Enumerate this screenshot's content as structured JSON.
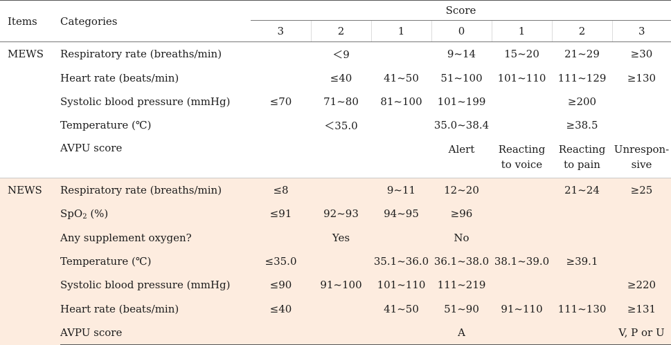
{
  "header": {
    "items": "Items",
    "categories": "Categories",
    "score": "Score",
    "score_cols": [
      "3",
      "2",
      "1",
      "0",
      "1",
      "2",
      "3"
    ]
  },
  "mews": {
    "label": "MEWS",
    "rows": [
      {
        "cat": "Respiratory rate (breaths/min)",
        "vals": [
          "",
          "＜9",
          "",
          "9~14",
          "15~20",
          "21~29",
          "≥30"
        ]
      },
      {
        "cat": "Heart rate (beats/min)",
        "vals": [
          "",
          "≤40",
          "41~50",
          "51~100",
          "101~110",
          "111~129",
          "≥130"
        ]
      },
      {
        "cat": "Systolic blood pressure (mmHg)",
        "vals": [
          "≤70",
          "71~80",
          "81~100",
          "101~199",
          "",
          "≥200",
          ""
        ]
      },
      {
        "cat": "Temperature (℃)",
        "vals": [
          "",
          "＜35.0",
          "",
          "35.0~38.4",
          "",
          "≥38.5",
          ""
        ]
      },
      {
        "cat": "AVPU score",
        "vals": [
          "",
          "",
          "",
          "Alert",
          "Reacting to voice",
          "Reacting to pain",
          "Unrespon-sive"
        ]
      }
    ]
  },
  "news": {
    "label": "NEWS",
    "rows": [
      {
        "cat": "Respiratory rate (breaths/min)",
        "vals": [
          "≤8",
          "",
          "9~11",
          "12~20",
          "",
          "21~24",
          "≥25"
        ]
      },
      {
        "cat": "SpO2 (%)",
        "vals": [
          "≤91",
          "92~93",
          "94~95",
          "≥96",
          "",
          "",
          ""
        ]
      },
      {
        "cat": "Any supplement oxygen?",
        "vals": [
          "",
          "Yes",
          "",
          "No",
          "",
          "",
          ""
        ]
      },
      {
        "cat": "Temperature (℃)",
        "vals": [
          "≤35.0",
          "",
          "35.1~36.0",
          "36.1~38.0",
          "38.1~39.0",
          "≥39.1",
          ""
        ]
      },
      {
        "cat": "Systolic blood pressure (mmHg)",
        "vals": [
          "≤90",
          "91~100",
          "101~110",
          "111~219",
          "",
          "",
          "≥220"
        ]
      },
      {
        "cat": "Heart rate (beats/min)",
        "vals": [
          "≤40",
          "",
          "41~50",
          "51~90",
          "91~110",
          "111~130",
          "≥131"
        ]
      },
      {
        "cat": "AVPU score",
        "vals": [
          "",
          "",
          "",
          "A",
          "",
          "",
          "V, P or U"
        ]
      }
    ]
  },
  "colors": {
    "news_shade": "#fdecdf"
  }
}
